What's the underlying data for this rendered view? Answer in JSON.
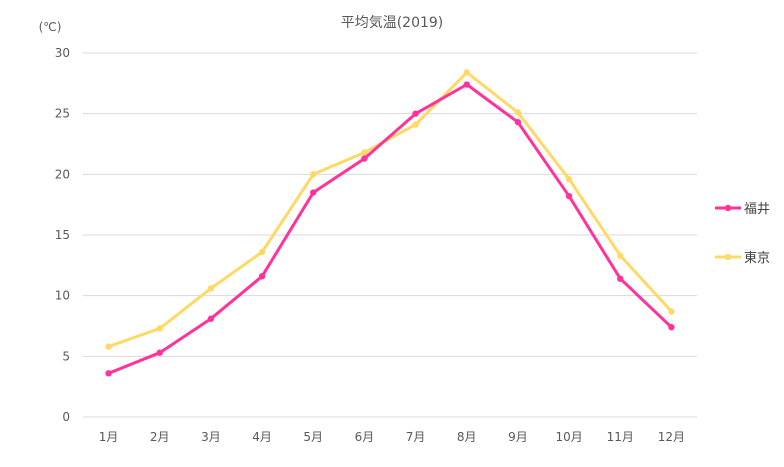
{
  "chart_data": {
    "type": "line",
    "title": "平均気温(2019)",
    "ylabel": "(℃)",
    "xlabel": "",
    "categories": [
      "1月",
      "2月",
      "3月",
      "4月",
      "5月",
      "6月",
      "7月",
      "8月",
      "9月",
      "10月",
      "11月",
      "12月"
    ],
    "ylim": [
      0,
      30
    ],
    "yticks": [
      0,
      5,
      10,
      15,
      20,
      25,
      30
    ],
    "grid": true,
    "legend_position": "right",
    "series": [
      {
        "name": "福井",
        "color": "#ff3399",
        "values": [
          3.6,
          5.3,
          8.1,
          11.6,
          18.5,
          21.3,
          25.0,
          27.4,
          24.3,
          18.2,
          11.4,
          7.4
        ]
      },
      {
        "name": "東京",
        "color": "#ffd966",
        "values": [
          5.8,
          7.3,
          10.6,
          13.6,
          20.0,
          21.8,
          24.1,
          28.4,
          25.1,
          19.6,
          13.3,
          8.7
        ]
      }
    ]
  }
}
